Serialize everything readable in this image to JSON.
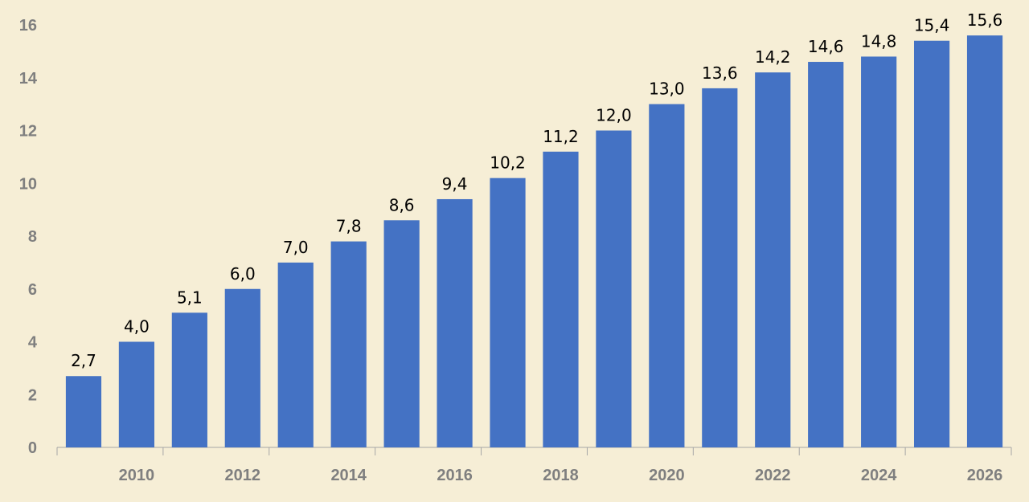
{
  "chart_data": {
    "type": "bar",
    "x": [
      2009,
      2010,
      2011,
      2012,
      2013,
      2014,
      2015,
      2016,
      2017,
      2018,
      2019,
      2020,
      2021,
      2022,
      2023,
      2024,
      2025,
      2026
    ],
    "values": [
      2.7,
      4.0,
      5.1,
      6.0,
      7.0,
      7.8,
      8.6,
      9.4,
      10.2,
      11.2,
      12.0,
      13.0,
      13.6,
      14.2,
      14.6,
      14.8,
      15.4,
      15.6
    ],
    "data_labels": [
      "2,7",
      "4,0",
      "5,1",
      "6,0",
      "7,0",
      "7,8",
      "8,6",
      "9,4",
      "10,2",
      "11,2",
      "12,0",
      "13,0",
      "13,6",
      "14,2",
      "14,6",
      "14,8",
      "15,4",
      "15,6"
    ],
    "x_tick_labels": [
      "2010",
      "2012",
      "2014",
      "2016",
      "2018",
      "2020",
      "2022",
      "2024",
      "2026"
    ],
    "y_tick_labels": [
      "0",
      "2",
      "4",
      "6",
      "8",
      "10",
      "12",
      "14",
      "16"
    ],
    "ylim": [
      0,
      16
    ],
    "title": "",
    "xlabel": "",
    "ylabel": "",
    "grid": false,
    "legend": "none",
    "bar_color": "#4472c4",
    "background_color": "#f6eed6",
    "tick_color": "#7f7f7f",
    "label_color": "#000000"
  }
}
